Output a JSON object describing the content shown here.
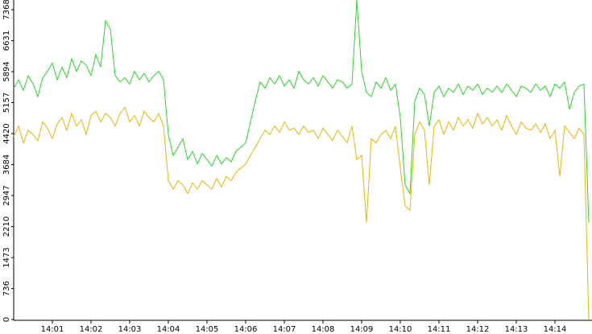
{
  "chart_data": {
    "type": "line",
    "xlim": [
      0,
      119
    ],
    "xticks": [
      {
        "value": 8,
        "label": "14:01"
      },
      {
        "value": 16,
        "label": "14:02"
      },
      {
        "value": 24,
        "label": "14:03"
      },
      {
        "value": 32,
        "label": "14:04"
      },
      {
        "value": 40,
        "label": "14:05"
      },
      {
        "value": 48,
        "label": "14:06"
      },
      {
        "value": 56,
        "label": "14:07"
      },
      {
        "value": 64,
        "label": "14:08"
      },
      {
        "value": 72,
        "label": "14:09"
      },
      {
        "value": 80,
        "label": "14:10"
      },
      {
        "value": 88,
        "label": "14:11"
      },
      {
        "value": 96,
        "label": "14:12"
      },
      {
        "value": 104,
        "label": "14:13"
      },
      {
        "value": 112,
        "label": "14:14"
      }
    ],
    "ylim": [
      0,
      7368
    ],
    "yticks": [
      0,
      736,
      1473,
      2210,
      2947,
      3684,
      4420,
      5157,
      5894,
      6631,
      7368
    ],
    "series": [
      {
        "color": "#22dd22",
        "values": [
          5500,
          5700,
          5450,
          5800,
          5600,
          5300,
          5750,
          5900,
          6100,
          5700,
          6000,
          5750,
          6200,
          5900,
          6150,
          6050,
          5800,
          6300,
          6000,
          7100,
          6900,
          5800,
          5650,
          5750,
          5600,
          5900,
          5700,
          5850,
          5650,
          5800,
          5900,
          5700,
          4400,
          3900,
          4100,
          4300,
          3800,
          4000,
          3700,
          3950,
          3800,
          3650,
          3900,
          3700,
          3850,
          3750,
          4000,
          4100,
          4200,
          4700,
          5200,
          5650,
          5500,
          5750,
          5600,
          5800,
          5550,
          5700,
          5500,
          5900,
          5700,
          5600,
          5750,
          5550,
          5800,
          5650,
          5500,
          5700,
          5650,
          5500,
          5600,
          7600,
          5900,
          5400,
          5300,
          5650,
          5500,
          5750,
          5450,
          5600,
          4800,
          3200,
          3000,
          5200,
          5500,
          5350,
          4600,
          5400,
          5550,
          5300,
          5500,
          5400,
          5600,
          5350,
          5550,
          5450,
          5600,
          5350,
          5500,
          5400,
          5550,
          5400,
          5600,
          5450,
          5300,
          5550,
          5500,
          5400,
          5600,
          5450,
          5550,
          5300,
          5600,
          5500,
          5650,
          5000,
          5400,
          5550,
          5600,
          2300
        ]
      },
      {
        "color": "#f0b400",
        "values": [
          4350,
          4600,
          4200,
          4500,
          4400,
          4250,
          4700,
          4550,
          4300,
          4650,
          4800,
          4500,
          4900,
          4600,
          4750,
          4400,
          4850,
          4950,
          4700,
          4900,
          4800,
          4600,
          4900,
          5050,
          4700,
          4850,
          4600,
          4950,
          4800,
          4700,
          4900,
          4600,
          3300,
          3100,
          3300,
          3200,
          3000,
          3250,
          3100,
          3300,
          3200,
          3100,
          3350,
          3150,
          3400,
          3300,
          3500,
          3600,
          3700,
          3900,
          4100,
          4300,
          4500,
          4400,
          4600,
          4450,
          4700,
          4500,
          4550,
          4400,
          4600,
          4450,
          4500,
          4300,
          4550,
          4400,
          4250,
          4500,
          4350,
          4200,
          4600,
          3800,
          3900,
          2300,
          4300,
          4200,
          4400,
          4500,
          4300,
          4600,
          3600,
          2700,
          2600,
          4400,
          4700,
          4500,
          3200,
          4600,
          4750,
          4400,
          4700,
          4500,
          4800,
          4600,
          4750,
          4550,
          4900,
          4650,
          4800,
          4600,
          4750,
          4500,
          4850,
          4600,
          4400,
          4700,
          4550,
          4500,
          4650,
          4450,
          4650,
          4300,
          4500,
          3400,
          4600,
          4450,
          4300,
          4550,
          4400,
          0
        ]
      }
    ]
  }
}
